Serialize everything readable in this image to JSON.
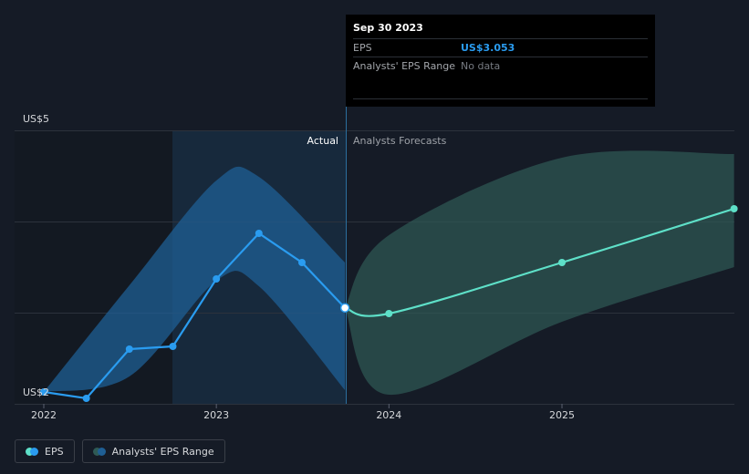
{
  "tooltip": {
    "date": "Sep 30 2023",
    "eps_label": "EPS",
    "eps_value": "US$3.053",
    "range_label": "Analysts' EPS Range",
    "range_value": "No data"
  },
  "legend": {
    "eps_label": "EPS",
    "range_label": "Analysts' EPS Range"
  },
  "colors": {
    "background": "#151b26",
    "eps_actual": "#2a9cf0",
    "eps_forecast": "#5ee0c8",
    "range_actual": "#1f5f94",
    "range_forecast": "#2f5a55",
    "highlight": "#19344f"
  },
  "chart_data": {
    "type": "line",
    "region_labels": {
      "actual": "Actual",
      "forecast": "Analysts Forecasts"
    },
    "x_ticks": [
      "2022",
      "2023",
      "2024",
      "2025"
    ],
    "y_labels": [
      "US$5",
      "US$2"
    ],
    "ylim": [
      2,
      5
    ],
    "grid": true,
    "highlight_range": [
      "2022-10-01",
      "2023-09-30"
    ],
    "actual_forecast_split": "2023-09-30",
    "series": [
      {
        "name": "EPS",
        "kind": "actual",
        "points": [
          {
            "x": "2022-01-01",
            "y": 2.13
          },
          {
            "x": "2022-04-01",
            "y": 2.06
          },
          {
            "x": "2022-07-01",
            "y": 2.6
          },
          {
            "x": "2022-10-01",
            "y": 2.63
          },
          {
            "x": "2023-01-01",
            "y": 3.37
          },
          {
            "x": "2023-04-01",
            "y": 3.87
          },
          {
            "x": "2023-07-01",
            "y": 3.55
          },
          {
            "x": "2023-09-30",
            "y": 3.053
          }
        ]
      },
      {
        "name": "EPS",
        "kind": "forecast",
        "points": [
          {
            "x": "2023-09-30",
            "y": 3.053
          },
          {
            "x": "2024-01-01",
            "y": 2.99
          },
          {
            "x": "2025-01-01",
            "y": 3.55
          },
          {
            "x": "2025-12-31",
            "y": 4.14
          }
        ]
      },
      {
        "name": "Analysts' EPS Range",
        "kind": "actual-range",
        "points": [
          {
            "x": "2022-01-01",
            "low": 2.13,
            "high": 2.13
          },
          {
            "x": "2022-07-01",
            "low": 2.3,
            "high": 3.3
          },
          {
            "x": "2023-01-01",
            "low": 3.35,
            "high": 4.45
          },
          {
            "x": "2023-04-01",
            "low": 3.29,
            "high": 4.49
          },
          {
            "x": "2023-09-30",
            "low": 2.15,
            "high": 3.55
          }
        ]
      },
      {
        "name": "Analysts' EPS Range",
        "kind": "forecast-range",
        "points": [
          {
            "x": "2023-09-30",
            "low": 3.053,
            "high": 3.053
          },
          {
            "x": "2024-01-01",
            "low": 2.1,
            "high": 3.85
          },
          {
            "x": "2025-01-01",
            "low": 2.9,
            "high": 4.7
          },
          {
            "x": "2025-12-31",
            "low": 3.5,
            "high": 4.74
          }
        ]
      }
    ]
  }
}
